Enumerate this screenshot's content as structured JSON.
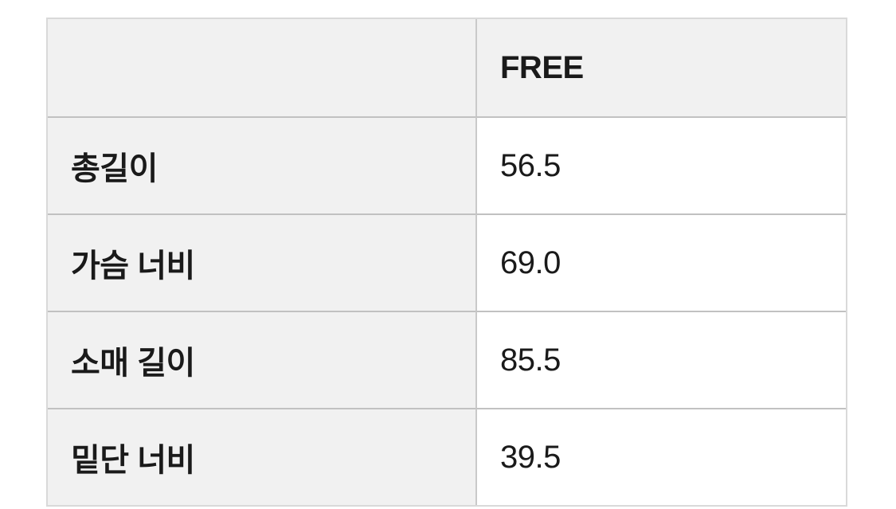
{
  "size_chart": {
    "header": {
      "corner_label": "",
      "column_label": "FREE"
    },
    "rows": [
      {
        "label": "총길이",
        "value": "56.5"
      },
      {
        "label": "가슴 너비",
        "value": "69.0"
      },
      {
        "label": "소매 길이",
        "value": "85.5"
      },
      {
        "label": "밑단 너비",
        "value": "39.5"
      }
    ],
    "colors": {
      "shaded_cell_bg": "#f1f1f1",
      "value_cell_bg": "#ffffff",
      "outer_border": "#d9d9d9",
      "row_separator": "#c1c1c1",
      "column_divider": "#c9c9c9",
      "text": "#1a1a1a",
      "page_bg": "#ffffff"
    }
  }
}
